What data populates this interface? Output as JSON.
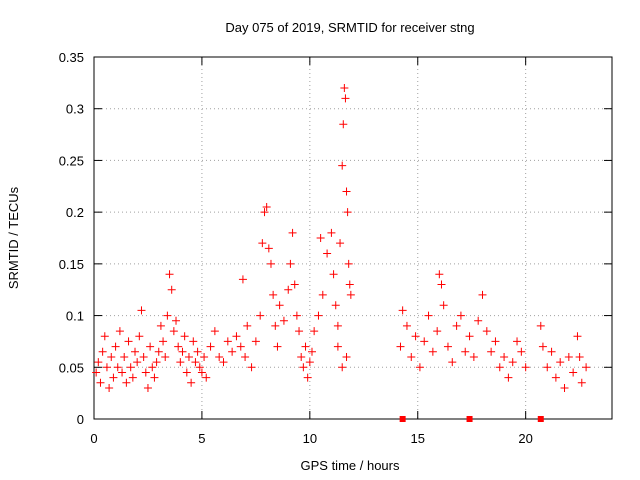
{
  "chart_data": {
    "type": "scatter",
    "title": "Day 075 of 2019, SRMTID for receiver stng",
    "xlabel": "GPS time / hours",
    "ylabel": "SRMTID / TECUs",
    "xlim": [
      0,
      24
    ],
    "ylim": [
      0,
      0.35
    ],
    "xticks": [
      0,
      5,
      10,
      15,
      20
    ],
    "xtick_labels": [
      "0",
      "5",
      "10",
      "15",
      "20"
    ],
    "yticks": [
      0,
      0.05,
      0.1,
      0.15,
      0.2,
      0.25,
      0.3,
      0.35
    ],
    "ytick_labels": [
      "0",
      "0.05",
      "0.1",
      "0.15",
      "0.2",
      "0.25",
      "0.3",
      "0.35"
    ],
    "grid": true,
    "marker": "+",
    "color": "#ff0000",
    "series": [
      {
        "name": "SRMTID",
        "points": [
          [
            0.1,
            0.045
          ],
          [
            0.2,
            0.055
          ],
          [
            0.3,
            0.035
          ],
          [
            0.4,
            0.065
          ],
          [
            0.5,
            0.08
          ],
          [
            0.6,
            0.05
          ],
          [
            0.7,
            0.03
          ],
          [
            0.8,
            0.06
          ],
          [
            0.9,
            0.04
          ],
          [
            1.0,
            0.07
          ],
          [
            1.1,
            0.05
          ],
          [
            1.2,
            0.085
          ],
          [
            1.3,
            0.045
          ],
          [
            1.4,
            0.06
          ],
          [
            1.5,
            0.035
          ],
          [
            1.6,
            0.075
          ],
          [
            1.7,
            0.05
          ],
          [
            1.8,
            0.04
          ],
          [
            1.9,
            0.065
          ],
          [
            2.0,
            0.055
          ],
          [
            2.1,
            0.08
          ],
          [
            2.2,
            0.105
          ],
          [
            2.3,
            0.06
          ],
          [
            2.4,
            0.045
          ],
          [
            2.5,
            0.03
          ],
          [
            2.6,
            0.07
          ],
          [
            2.7,
            0.05
          ],
          [
            2.8,
            0.04
          ],
          [
            2.9,
            0.055
          ],
          [
            3.0,
            0.065
          ],
          [
            3.1,
            0.09
          ],
          [
            3.2,
            0.075
          ],
          [
            3.3,
            0.06
          ],
          [
            3.4,
            0.1
          ],
          [
            3.5,
            0.14
          ],
          [
            3.6,
            0.125
          ],
          [
            3.7,
            0.085
          ],
          [
            3.8,
            0.095
          ],
          [
            3.9,
            0.07
          ],
          [
            4.0,
            0.055
          ],
          [
            4.1,
            0.065
          ],
          [
            4.2,
            0.08
          ],
          [
            4.3,
            0.045
          ],
          [
            4.4,
            0.06
          ],
          [
            4.5,
            0.035
          ],
          [
            4.6,
            0.075
          ],
          [
            4.7,
            0.055
          ],
          [
            4.8,
            0.065
          ],
          [
            4.9,
            0.05
          ],
          [
            5.0,
            0.045
          ],
          [
            5.1,
            0.06
          ],
          [
            5.2,
            0.04
          ],
          [
            5.4,
            0.07
          ],
          [
            5.6,
            0.085
          ],
          [
            5.8,
            0.06
          ],
          [
            6.0,
            0.055
          ],
          [
            6.2,
            0.075
          ],
          [
            6.4,
            0.065
          ],
          [
            6.6,
            0.08
          ],
          [
            6.8,
            0.07
          ],
          [
            6.9,
            0.135
          ],
          [
            7.0,
            0.06
          ],
          [
            7.1,
            0.09
          ],
          [
            7.3,
            0.05
          ],
          [
            7.5,
            0.075
          ],
          [
            7.7,
            0.1
          ],
          [
            7.8,
            0.17
          ],
          [
            7.9,
            0.2
          ],
          [
            8.0,
            0.205
          ],
          [
            8.1,
            0.165
          ],
          [
            8.2,
            0.15
          ],
          [
            8.3,
            0.12
          ],
          [
            8.4,
            0.09
          ],
          [
            8.5,
            0.07
          ],
          [
            8.6,
            0.11
          ],
          [
            8.8,
            0.095
          ],
          [
            9.0,
            0.125
          ],
          [
            9.1,
            0.15
          ],
          [
            9.2,
            0.18
          ],
          [
            9.3,
            0.13
          ],
          [
            9.4,
            0.1
          ],
          [
            9.5,
            0.085
          ],
          [
            9.6,
            0.06
          ],
          [
            9.7,
            0.05
          ],
          [
            9.8,
            0.07
          ],
          [
            9.9,
            0.04
          ],
          [
            10.0,
            0.055
          ],
          [
            10.1,
            0.065
          ],
          [
            10.2,
            0.085
          ],
          [
            10.4,
            0.1
          ],
          [
            10.5,
            0.175
          ],
          [
            10.6,
            0.12
          ],
          [
            10.8,
            0.16
          ],
          [
            11.0,
            0.18
          ],
          [
            11.1,
            0.14
          ],
          [
            11.2,
            0.11
          ],
          [
            11.3,
            0.09
          ],
          [
            11.4,
            0.17
          ],
          [
            11.5,
            0.245
          ],
          [
            11.55,
            0.285
          ],
          [
            11.6,
            0.32
          ],
          [
            11.65,
            0.31
          ],
          [
            11.7,
            0.22
          ],
          [
            11.75,
            0.2
          ],
          [
            11.8,
            0.15
          ],
          [
            11.85,
            0.13
          ],
          [
            11.9,
            0.12
          ],
          [
            11.7,
            0.06
          ],
          [
            11.5,
            0.05
          ],
          [
            11.3,
            0.07
          ],
          [
            14.2,
            0.07
          ],
          [
            14.3,
            0.105
          ],
          [
            14.5,
            0.09
          ],
          [
            14.7,
            0.06
          ],
          [
            14.9,
            0.08
          ],
          [
            15.1,
            0.05
          ],
          [
            15.3,
            0.075
          ],
          [
            15.5,
            0.1
          ],
          [
            15.7,
            0.065
          ],
          [
            15.9,
            0.085
          ],
          [
            16.0,
            0.14
          ],
          [
            16.1,
            0.13
          ],
          [
            16.2,
            0.11
          ],
          [
            16.4,
            0.07
          ],
          [
            16.6,
            0.055
          ],
          [
            16.8,
            0.09
          ],
          [
            17.0,
            0.1
          ],
          [
            17.2,
            0.065
          ],
          [
            17.4,
            0.08
          ],
          [
            17.6,
            0.06
          ],
          [
            17.8,
            0.095
          ],
          [
            18.0,
            0.12
          ],
          [
            18.2,
            0.085
          ],
          [
            18.4,
            0.065
          ],
          [
            18.6,
            0.075
          ],
          [
            18.8,
            0.05
          ],
          [
            19.0,
            0.06
          ],
          [
            19.2,
            0.04
          ],
          [
            19.4,
            0.055
          ],
          [
            19.6,
            0.075
          ],
          [
            19.8,
            0.065
          ],
          [
            20.0,
            0.05
          ],
          [
            20.7,
            0.09
          ],
          [
            20.8,
            0.07
          ],
          [
            21.0,
            0.05
          ],
          [
            21.2,
            0.065
          ],
          [
            21.4,
            0.04
          ],
          [
            21.6,
            0.055
          ],
          [
            21.8,
            0.03
          ],
          [
            22.0,
            0.06
          ],
          [
            22.2,
            0.045
          ],
          [
            22.4,
            0.08
          ],
          [
            22.5,
            0.06
          ],
          [
            22.6,
            0.035
          ],
          [
            22.8,
            0.05
          ]
        ]
      }
    ],
    "zero_markers_x": [
      14.3,
      17.4,
      20.7
    ]
  }
}
